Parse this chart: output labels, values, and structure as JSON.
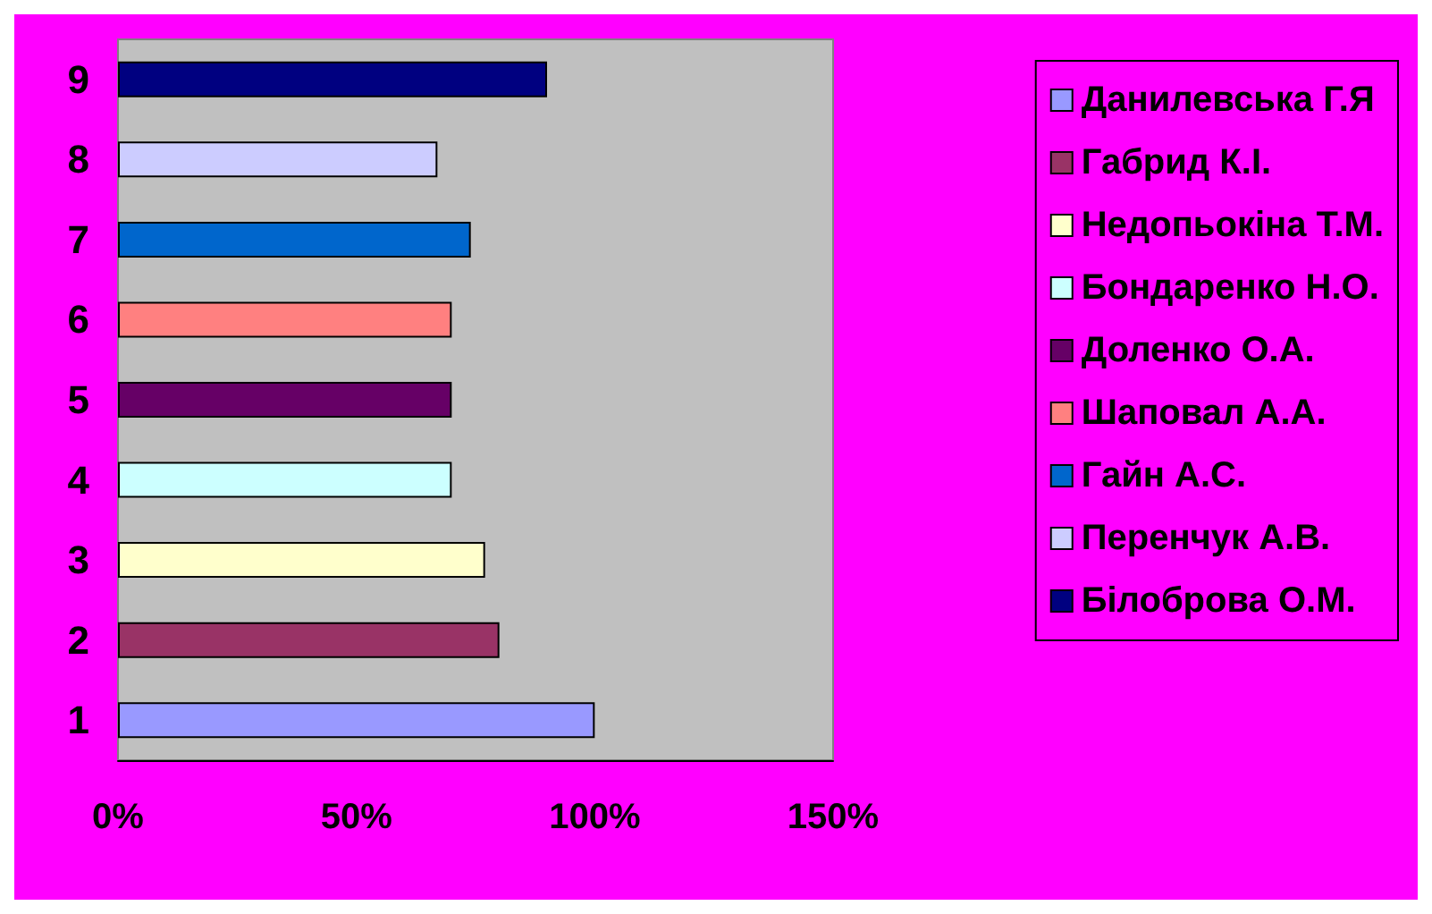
{
  "chart_data": {
    "type": "bar",
    "orientation": "horizontal",
    "categories": [
      "9",
      "8",
      "7",
      "6",
      "5",
      "4",
      "3",
      "2",
      "1"
    ],
    "series": [
      {
        "name": "Данилевська Г.Я",
        "color": "#9999ff",
        "values": [
          null,
          null,
          null,
          null,
          null,
          null,
          null,
          null,
          100
        ]
      },
      {
        "name": "Габрид К.І.",
        "color": "#993366",
        "values": [
          null,
          null,
          null,
          null,
          null,
          null,
          null,
          80,
          null
        ]
      },
      {
        "name": "Недопьокіна Т.М.",
        "color": "#ffffcc",
        "values": [
          null,
          null,
          null,
          null,
          null,
          null,
          77,
          null,
          null
        ]
      },
      {
        "name": "Бондаренко Н.О.",
        "color": "#ccffff",
        "values": [
          null,
          null,
          null,
          null,
          null,
          70,
          null,
          null,
          null
        ]
      },
      {
        "name": "Доленко О.А.",
        "color": "#660066",
        "values": [
          null,
          null,
          null,
          null,
          70,
          null,
          null,
          null,
          null
        ]
      },
      {
        "name": "Шаповал А.А.",
        "color": "#ff8080",
        "values": [
          null,
          null,
          null,
          70,
          null,
          null,
          null,
          null,
          null
        ]
      },
      {
        "name": "Гайн А.С.",
        "color": "#0066cc",
        "values": [
          null,
          null,
          74,
          null,
          null,
          null,
          null,
          null,
          null
        ]
      },
      {
        "name": "Перенчук А.В.",
        "color": "#ccccff",
        "values": [
          null,
          67,
          null,
          null,
          null,
          null,
          null,
          null,
          null
        ]
      },
      {
        "name": "Білоброва О.М.",
        "color": "#000080",
        "values": [
          90,
          null,
          null,
          null,
          null,
          null,
          null,
          null,
          null
        ]
      }
    ],
    "xlim": [
      0,
      150
    ],
    "xticks": [
      {
        "value": 0,
        "label": "0%"
      },
      {
        "value": 50,
        "label": "50%"
      },
      {
        "value": 100,
        "label": "100%"
      },
      {
        "value": 150,
        "label": "150%"
      }
    ],
    "grid": false,
    "legend": "right"
  }
}
